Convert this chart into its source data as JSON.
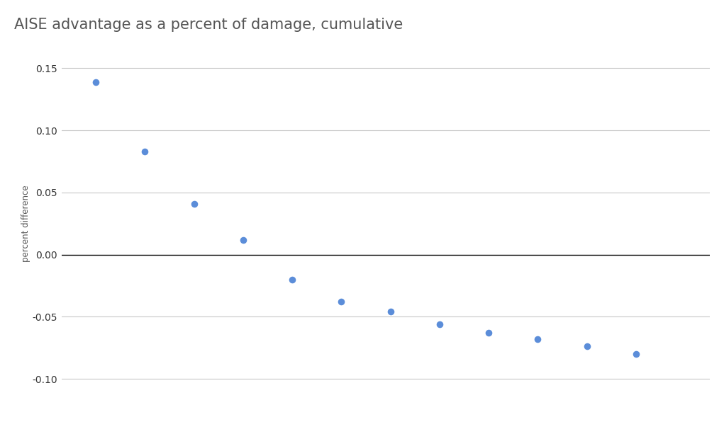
{
  "title": "AISE advantage as a percent of damage, cumulative",
  "ylabel": "percent difference",
  "x_values": [
    1,
    2,
    3,
    4,
    5,
    6,
    7,
    8,
    9,
    10,
    11,
    12
  ],
  "y_values": [
    0.139,
    0.083,
    0.041,
    0.012,
    -0.02,
    -0.038,
    -0.046,
    -0.056,
    -0.063,
    -0.068,
    -0.074,
    -0.08
  ],
  "dot_color": "#5b8dd9",
  "dot_size": 35,
  "ylim": [
    -0.12,
    0.17
  ],
  "yticks": [
    0.15,
    0.1,
    0.05,
    0.0,
    -0.05,
    -0.1
  ],
  "xlim": [
    0.3,
    13.5
  ],
  "background_color": "#ffffff",
  "title_fontsize": 15,
  "ylabel_fontsize": 8.5,
  "tick_fontsize": 10,
  "zero_line_color": "#000000",
  "grid_color": "#c8c8c8",
  "title_color": "#555555"
}
